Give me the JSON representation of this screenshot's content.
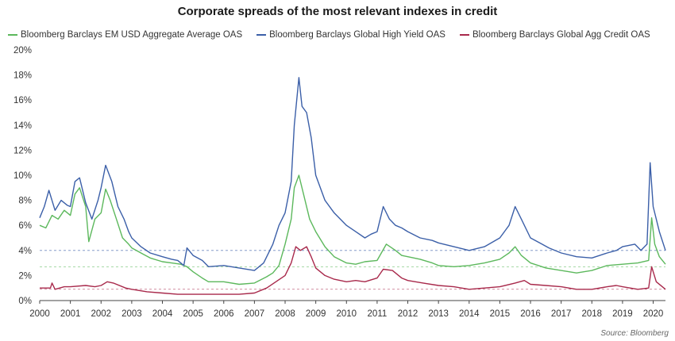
{
  "chart_data": {
    "type": "line",
    "title": "Corporate spreads of the most relevant indexes in credit",
    "source": "Source: Bloomberg",
    "xlabel": "",
    "ylabel": "",
    "xlim": [
      2000,
      2020.4
    ],
    "ylim": [
      0,
      20
    ],
    "y_ticks": [
      "0%",
      "2%",
      "4%",
      "6%",
      "8%",
      "10%",
      "12%",
      "14%",
      "16%",
      "18%",
      "20%"
    ],
    "x_ticks": [
      "2000",
      "2001",
      "2002",
      "2003",
      "2004",
      "2005",
      "2006",
      "2007",
      "2008",
      "2009",
      "2010",
      "2011",
      "2012",
      "2013",
      "2014",
      "2015",
      "2016",
      "2017",
      "2018",
      "2019",
      "2020"
    ],
    "grid": false,
    "legend_position": "top",
    "reference_lines": [
      {
        "y": 4.0,
        "color": "#3b5fa8"
      },
      {
        "y": 2.7,
        "color": "#5cb85c"
      },
      {
        "y": 0.9,
        "color": "#a8294b"
      }
    ],
    "series": [
      {
        "name": "Bloomberg Barclays EM USD Aggregate Average OAS",
        "color": "#5cb85c",
        "x": [
          2000.0,
          2000.2,
          2000.4,
          2000.6,
          2000.8,
          2001.0,
          2001.15,
          2001.3,
          2001.5,
          2001.6,
          2001.8,
          2002.0,
          2002.15,
          2002.3,
          2002.5,
          2002.7,
          2002.9,
          2003.0,
          2003.3,
          2003.6,
          2004.0,
          2004.3,
          2004.6,
          2004.8,
          2005.0,
          2005.3,
          2005.5,
          2006.0,
          2006.5,
          2007.0,
          2007.4,
          2007.6,
          2007.8,
          2008.0,
          2008.2,
          2008.3,
          2008.45,
          2008.6,
          2008.8,
          2009.0,
          2009.3,
          2009.6,
          2010.0,
          2010.3,
          2010.6,
          2011.0,
          2011.3,
          2011.6,
          2011.8,
          2012.0,
          2012.4,
          2012.8,
          2013.0,
          2013.5,
          2014.0,
          2014.5,
          2015.0,
          2015.3,
          2015.5,
          2015.7,
          2016.0,
          2016.5,
          2017.0,
          2017.5,
          2018.0,
          2018.5,
          2019.0,
          2019.5,
          2019.85,
          2019.95,
          2020.05,
          2020.2,
          2020.4
        ],
        "values": [
          6.0,
          5.8,
          6.8,
          6.5,
          7.2,
          6.8,
          8.5,
          9.0,
          7.5,
          4.7,
          6.5,
          7.0,
          8.9,
          8.0,
          6.5,
          5.0,
          4.5,
          4.2,
          3.8,
          3.4,
          3.1,
          3.0,
          2.9,
          2.7,
          2.3,
          1.8,
          1.5,
          1.5,
          1.3,
          1.4,
          1.9,
          2.2,
          2.8,
          4.5,
          6.5,
          9.0,
          10.0,
          8.5,
          6.5,
          5.5,
          4.3,
          3.5,
          3.0,
          2.9,
          3.1,
          3.2,
          4.5,
          4.0,
          3.6,
          3.5,
          3.3,
          3.0,
          2.8,
          2.7,
          2.8,
          3.0,
          3.3,
          3.8,
          4.3,
          3.6,
          3.0,
          2.6,
          2.4,
          2.2,
          2.4,
          2.8,
          2.9,
          3.0,
          3.2,
          6.6,
          4.5,
          3.5,
          2.9
        ]
      },
      {
        "name": "Bloomberg Barclays Global High Yield OAS",
        "color": "#3b5fa8",
        "x": [
          2000.0,
          2000.15,
          2000.3,
          2000.5,
          2000.7,
          2000.9,
          2001.0,
          2001.15,
          2001.3,
          2001.5,
          2001.7,
          2001.9,
          2002.0,
          2002.15,
          2002.35,
          2002.55,
          2002.75,
          2002.9,
          2003.0,
          2003.3,
          2003.6,
          2004.0,
          2004.3,
          2004.5,
          2004.7,
          2004.8,
          2005.0,
          2005.3,
          2005.5,
          2006.0,
          2006.5,
          2007.0,
          2007.3,
          2007.6,
          2007.8,
          2008.0,
          2008.2,
          2008.3,
          2008.45,
          2008.55,
          2008.7,
          2008.85,
          2009.0,
          2009.3,
          2009.6,
          2010.0,
          2010.3,
          2010.6,
          2010.8,
          2011.0,
          2011.2,
          2011.4,
          2011.6,
          2011.8,
          2012.0,
          2012.4,
          2012.8,
          2013.0,
          2013.5,
          2014.0,
          2014.5,
          2015.0,
          2015.3,
          2015.5,
          2015.7,
          2016.0,
          2016.3,
          2016.6,
          2017.0,
          2017.5,
          2018.0,
          2018.5,
          2018.8,
          2019.0,
          2019.4,
          2019.6,
          2019.8,
          2019.9,
          2020.0,
          2020.2,
          2020.4
        ],
        "values": [
          6.6,
          7.5,
          8.8,
          7.2,
          8.0,
          7.6,
          7.5,
          9.5,
          9.8,
          7.8,
          6.5,
          8.0,
          9.0,
          10.8,
          9.5,
          7.5,
          6.5,
          5.5,
          5.0,
          4.3,
          3.8,
          3.5,
          3.3,
          3.2,
          2.8,
          4.2,
          3.6,
          3.2,
          2.7,
          2.8,
          2.6,
          2.4,
          3.0,
          4.5,
          6.0,
          7.0,
          9.5,
          14.0,
          17.8,
          15.5,
          15.0,
          13.0,
          10.0,
          8.0,
          7.0,
          6.0,
          5.5,
          5.0,
          5.3,
          5.5,
          7.5,
          6.5,
          6.0,
          5.8,
          5.5,
          5.0,
          4.8,
          4.6,
          4.3,
          4.0,
          4.3,
          5.0,
          6.0,
          7.5,
          6.5,
          5.0,
          4.6,
          4.2,
          3.8,
          3.5,
          3.4,
          3.8,
          4.0,
          4.3,
          4.5,
          4.0,
          4.5,
          11.0,
          7.5,
          5.5,
          4.0
        ]
      },
      {
        "name": "Bloomberg Barclays Global Agg Credit OAS",
        "color": "#a8294b",
        "x": [
          2000.0,
          2000.35,
          2000.4,
          2000.5,
          2000.8,
          2001.0,
          2001.5,
          2001.8,
          2002.0,
          2002.2,
          2002.4,
          2002.8,
          2003.0,
          2003.5,
          2004.0,
          2004.5,
          2005.0,
          2005.5,
          2006.0,
          2006.5,
          2007.0,
          2007.4,
          2007.7,
          2008.0,
          2008.2,
          2008.35,
          2008.5,
          2008.7,
          2008.85,
          2009.0,
          2009.3,
          2009.6,
          2010.0,
          2010.3,
          2010.6,
          2011.0,
          2011.2,
          2011.5,
          2011.8,
          2012.0,
          2012.5,
          2013.0,
          2013.5,
          2014.0,
          2014.5,
          2015.0,
          2015.5,
          2015.8,
          2016.0,
          2016.5,
          2017.0,
          2017.5,
          2018.0,
          2018.5,
          2018.8,
          2019.0,
          2019.5,
          2019.85,
          2019.95,
          2020.1,
          2020.4
        ],
        "values": [
          1.0,
          1.0,
          1.4,
          0.9,
          1.1,
          1.1,
          1.2,
          1.1,
          1.2,
          1.5,
          1.4,
          1.0,
          0.9,
          0.7,
          0.6,
          0.5,
          0.5,
          0.5,
          0.5,
          0.5,
          0.6,
          1.0,
          1.5,
          2.0,
          3.0,
          4.3,
          4.0,
          4.3,
          3.5,
          2.6,
          2.0,
          1.7,
          1.5,
          1.6,
          1.5,
          1.8,
          2.5,
          2.4,
          1.8,
          1.6,
          1.4,
          1.2,
          1.1,
          0.9,
          1.0,
          1.1,
          1.4,
          1.6,
          1.3,
          1.2,
          1.1,
          0.9,
          0.9,
          1.1,
          1.2,
          1.1,
          0.9,
          1.0,
          2.7,
          1.5,
          0.9
        ]
      }
    ]
  }
}
